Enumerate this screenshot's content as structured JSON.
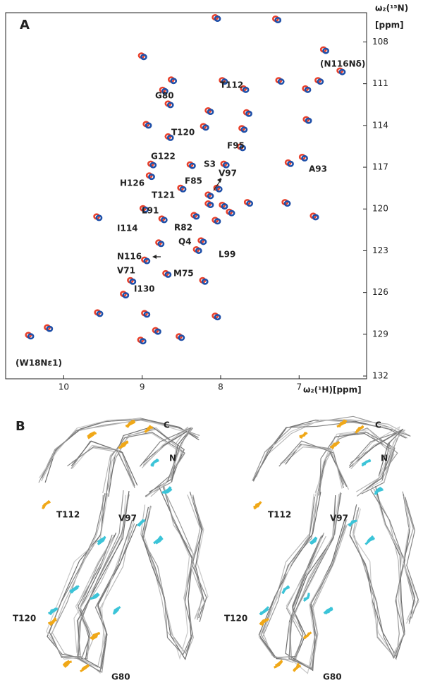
{
  "chart_data": {
    "type": "scatter",
    "panel": "A",
    "x_label": "ω₂(¹H)[ppm]",
    "y_label": "ω₂(¹⁵N)",
    "y_label_unit": "[ppm]",
    "xlim": [
      10.74,
      6.14
    ],
    "ylim": [
      105.9,
      132.2
    ],
    "xticks": [
      10,
      9,
      8,
      7
    ],
    "yticks": [
      108,
      111,
      114,
      117,
      120,
      123,
      126,
      129,
      132
    ],
    "series": [
      {
        "color": "#e8412c",
        "x": [
          7.3,
          8.07,
          6.69,
          9.01,
          6.48,
          8.63,
          7.98,
          7.26,
          6.76,
          8.74,
          7.71,
          6.92,
          8.67,
          8.16,
          7.67,
          6.91,
          8.95,
          8.22,
          7.73,
          8.67,
          7.75,
          7.14,
          6.96,
          8.89,
          8.39,
          7.96,
          8.91,
          8.51,
          8.05,
          8.16,
          7.66,
          7.18,
          6.82,
          8.99,
          8.34,
          9.58,
          8.75,
          8.07,
          8.25,
          8.79,
          8.97,
          8.31,
          8.7,
          9.15,
          8.23,
          9.24,
          8.97,
          8.07,
          9.57,
          8.83,
          10.21,
          9.02,
          8.53,
          7.98,
          7.89,
          8.16,
          10.45
        ],
        "values": [
          106.33,
          106.23,
          108.54,
          108.98,
          110.06,
          110.7,
          110.75,
          110.75,
          110.75,
          111.44,
          111.34,
          111.34,
          112.43,
          112.92,
          113.06,
          113.56,
          113.9,
          114.05,
          114.2,
          114.79,
          115.52,
          116.66,
          116.26,
          116.75,
          116.8,
          116.75,
          117.59,
          118.48,
          118.48,
          119.61,
          119.51,
          119.51,
          120.49,
          119.95,
          120.44,
          120.54,
          120.69,
          120.79,
          122.26,
          122.41,
          123.64,
          122.9,
          124.62,
          125.12,
          125.12,
          126.1,
          127.48,
          127.67,
          127.43,
          128.71,
          128.51,
          129.4,
          129.15,
          119.71,
          120.2,
          118.97,
          129.05
        ]
      },
      {
        "color": "#1f4fa8",
        "x": [
          7.27,
          8.04,
          6.66,
          8.98,
          6.45,
          8.6,
          7.95,
          7.23,
          6.73,
          8.71,
          7.68,
          6.89,
          8.64,
          8.13,
          7.64,
          6.88,
          8.92,
          8.19,
          7.7,
          8.64,
          7.72,
          7.11,
          6.93,
          8.86,
          8.36,
          7.93,
          8.88,
          8.48,
          8.02,
          8.13,
          7.63,
          7.15,
          6.79,
          8.96,
          8.31,
          9.55,
          8.72,
          8.04,
          8.22,
          8.76,
          8.94,
          8.28,
          8.67,
          9.12,
          8.2,
          9.21,
          8.94,
          8.04,
          9.54,
          8.8,
          10.18,
          8.99,
          8.5,
          7.95,
          7.86,
          8.13,
          10.42
        ],
        "values": [
          106.43,
          106.33,
          108.64,
          109.08,
          110.16,
          110.8,
          110.85,
          110.85,
          110.85,
          111.54,
          111.44,
          111.44,
          112.53,
          113.02,
          113.16,
          113.66,
          114.0,
          114.15,
          114.3,
          114.89,
          115.62,
          116.76,
          116.36,
          116.85,
          116.9,
          116.85,
          117.69,
          118.58,
          118.58,
          119.71,
          119.61,
          119.61,
          120.59,
          120.05,
          120.54,
          120.64,
          120.79,
          120.89,
          122.36,
          122.51,
          123.74,
          123.0,
          124.72,
          125.22,
          125.22,
          126.2,
          127.58,
          127.77,
          127.53,
          128.81,
          128.61,
          129.5,
          129.25,
          119.81,
          120.3,
          119.07,
          129.15
        ]
      }
    ],
    "annotations": [
      "T112",
      "(N116Nδ)",
      "G80",
      "T120",
      "F95",
      "G122",
      "S3",
      "V97",
      "A93",
      "H126",
      "F85",
      "T121",
      "L91",
      "I114",
      "R82",
      "Q4",
      "N116",
      "L99",
      "V71",
      "M75",
      "I130",
      "(W18Nε1)"
    ]
  },
  "panel_b": {
    "label": "B",
    "labels": [
      "C",
      "N",
      "T112",
      "V97",
      "T120",
      "G80"
    ]
  }
}
